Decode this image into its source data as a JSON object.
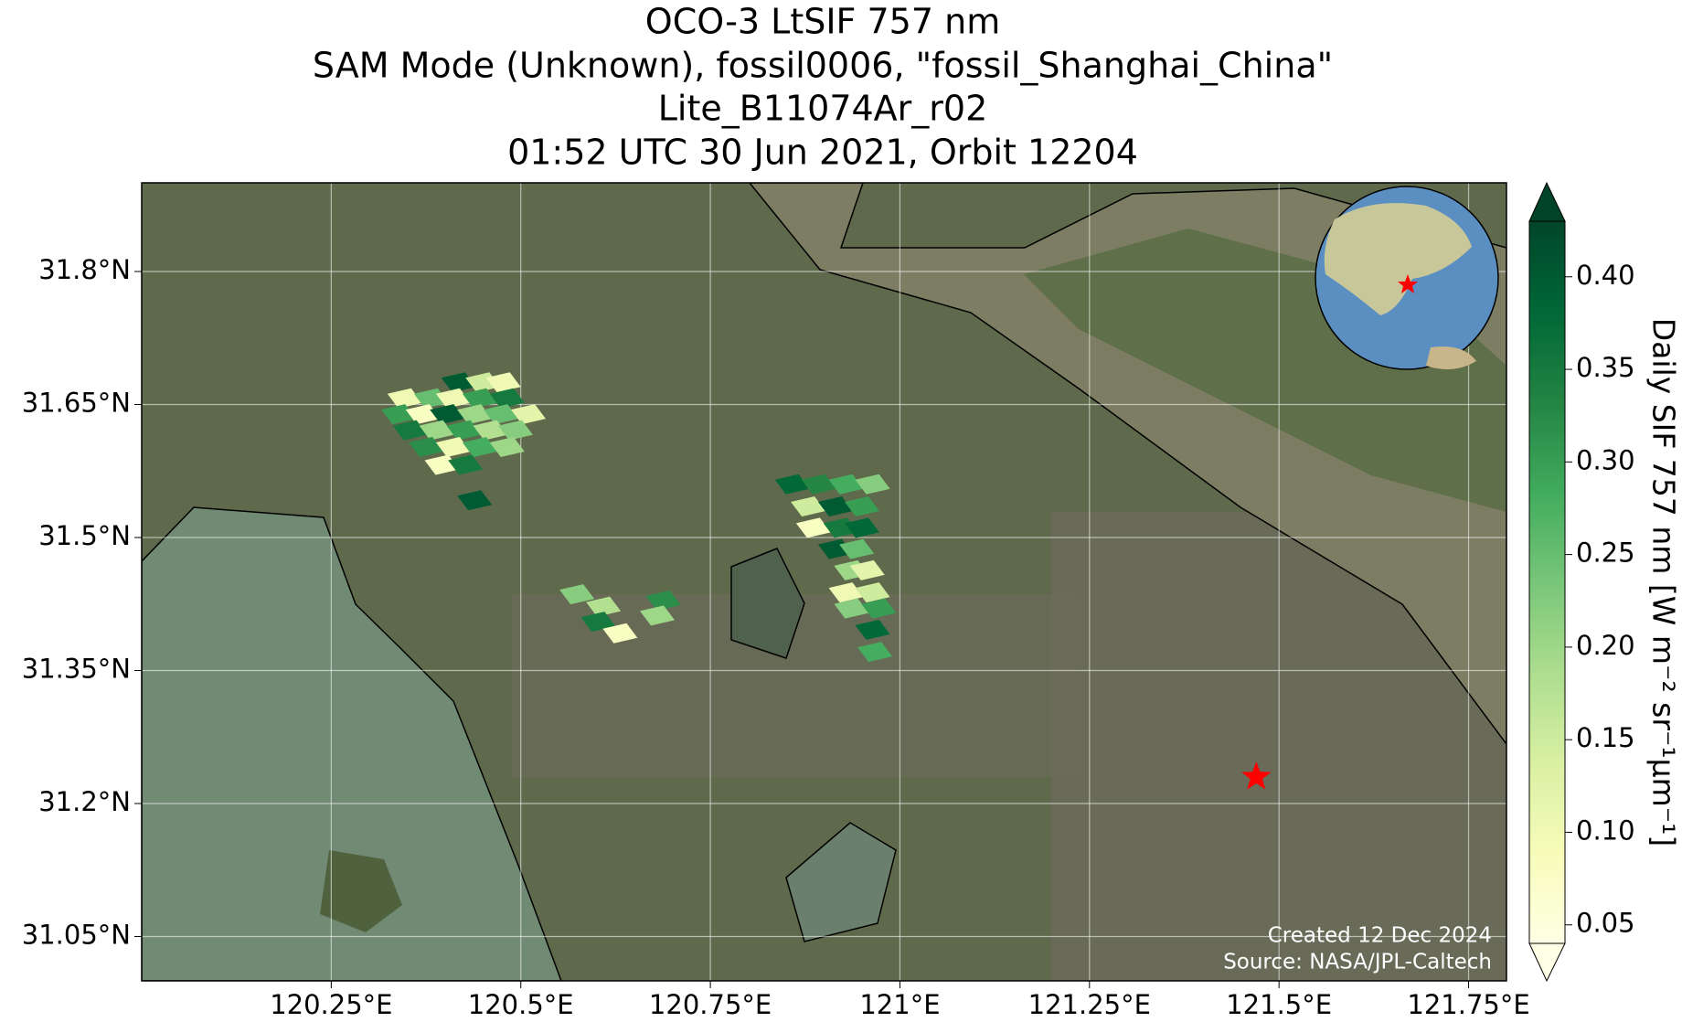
{
  "chart_data": {
    "type": "map",
    "title": [
      "OCO-3 LtSIF 757 nm",
      "SAM Mode (Unknown), fossil0006, \"fossil_Shanghai_China\"",
      "Lite_B11074Ar_r02",
      "01:52 UTC 30 Jun 2021, Orbit 12204"
    ],
    "xlim": [
      120.0,
      121.8
    ],
    "ylim": [
      31.0,
      31.9
    ],
    "xticks": [
      {
        "value": 120.25,
        "label": "120.25°E"
      },
      {
        "value": 120.5,
        "label": "120.5°E"
      },
      {
        "value": 120.75,
        "label": "120.75°E"
      },
      {
        "value": 121,
        "label": "121°E"
      },
      {
        "value": 121.25,
        "label": "121.25°E"
      },
      {
        "value": 121.5,
        "label": "121.5°E"
      },
      {
        "value": 121.75,
        "label": "121.75°E"
      }
    ],
    "yticks": [
      {
        "value": 31.05,
        "label": "31.05°N"
      },
      {
        "value": 31.2,
        "label": "31.2°N"
      },
      {
        "value": 31.35,
        "label": "31.35°N"
      },
      {
        "value": 31.5,
        "label": "31.5°N"
      },
      {
        "value": 31.65,
        "label": "31.65°N"
      },
      {
        "value": 31.8,
        "label": "31.8°N"
      }
    ],
    "grid": true,
    "x": [
      120.418,
      120.45,
      120.477,
      120.347,
      120.382,
      120.411,
      120.446,
      120.482,
      120.339,
      120.371,
      120.403,
      120.439,
      120.474,
      120.51,
      120.354,
      120.389,
      120.425,
      120.46,
      120.493,
      120.375,
      120.411,
      120.446,
      120.482,
      120.396,
      120.427,
      120.439,
      120.858,
      120.893,
      120.929,
      120.964,
      120.879,
      120.915,
      120.95,
      120.886,
      120.922,
      120.95,
      120.915,
      120.943,
      120.936,
      120.957,
      120.929,
      120.964,
      120.936,
      120.972,
      120.964,
      120.967,
      120.574,
      120.609,
      120.602,
      120.631,
      120.688,
      120.68
    ],
    "y": [
      31.675,
      31.675,
      31.675,
      31.657,
      31.657,
      31.657,
      31.657,
      31.657,
      31.639,
      31.639,
      31.639,
      31.639,
      31.639,
      31.639,
      31.621,
      31.621,
      31.621,
      31.621,
      31.621,
      31.602,
      31.602,
      31.602,
      31.602,
      31.582,
      31.582,
      31.542,
      31.56,
      31.56,
      31.56,
      31.56,
      31.535,
      31.535,
      31.535,
      31.511,
      31.511,
      31.511,
      31.487,
      31.487,
      31.463,
      31.463,
      31.438,
      31.438,
      31.42,
      31.42,
      31.396,
      31.371,
      31.436,
      31.422,
      31.405,
      31.392,
      31.429,
      31.412
    ],
    "values": [
      0.4,
      0.15,
      0.1,
      0.1,
      0.25,
      0.1,
      0.3,
      0.35,
      0.3,
      0.08,
      0.4,
      0.2,
      0.25,
      0.12,
      0.35,
      0.2,
      0.3,
      0.18,
      0.22,
      0.32,
      0.1,
      0.28,
      0.2,
      0.08,
      0.35,
      0.4,
      0.38,
      0.33,
      0.28,
      0.22,
      0.15,
      0.4,
      0.3,
      0.08,
      0.35,
      0.38,
      0.4,
      0.25,
      0.2,
      0.12,
      0.1,
      0.15,
      0.22,
      0.3,
      0.38,
      0.28,
      0.22,
      0.18,
      0.35,
      0.08,
      0.32,
      0.2
    ],
    "target": {
      "x": 121.47,
      "y": 31.23,
      "color": "#ff0000"
    },
    "colormap": [
      "#ffffe5",
      "#f7fcb9",
      "#d9f0a3",
      "#addd8e",
      "#78c679",
      "#41ab5d",
      "#238443",
      "#006837",
      "#004529"
    ],
    "colorbar": {
      "label": "Daily SIF 757 nm [W m⁻² sr⁻¹μm⁻¹]",
      "lim": [
        0.04,
        0.43
      ],
      "ticks": [
        0.05,
        {
          "value": 0.1,
          "label": "0.10"
        },
        0.15,
        {
          "value": 0.2,
          "label": "0.20"
        },
        0.25,
        {
          "value": 0.3,
          "label": "0.30"
        },
        0.35,
        {
          "value": 0.4,
          "label": "0.40"
        }
      ]
    },
    "credits": [
      "Created 12 Dec 2024",
      "Source: NASA/JPL-Caltech"
    ]
  }
}
